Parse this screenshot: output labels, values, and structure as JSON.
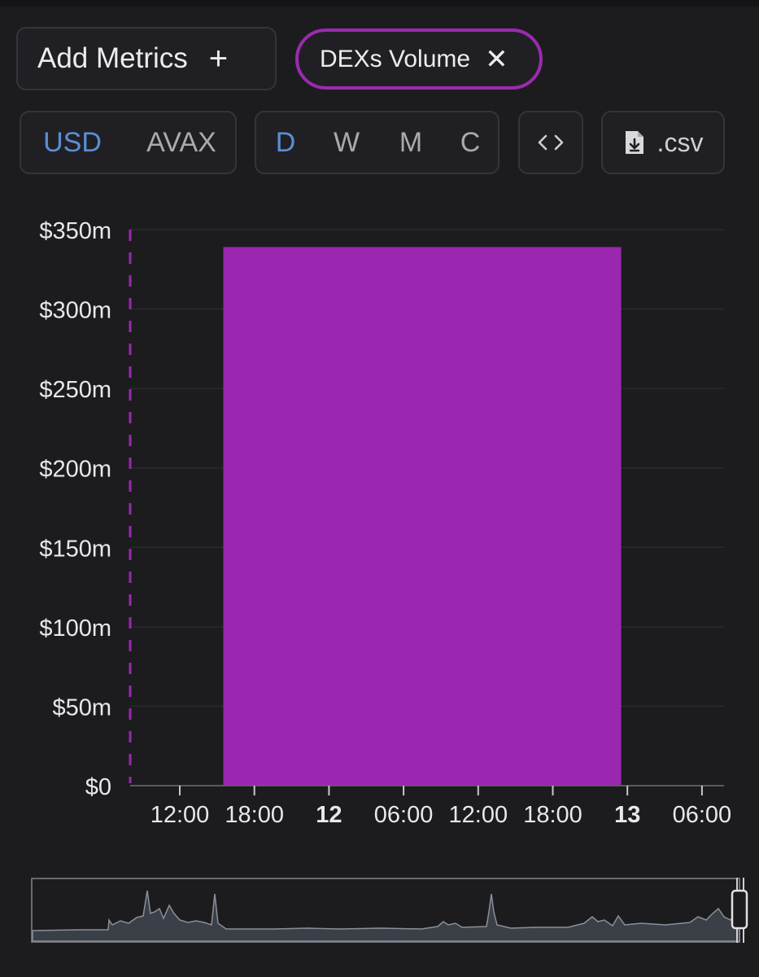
{
  "toolbar": {
    "add_metrics_label": "Add Metrics",
    "add_icon": "plus-icon",
    "metric_chip_label": "DEXs Volume",
    "close_icon": "close-icon",
    "currency_options": [
      "USD",
      "AVAX"
    ],
    "currency_selected": "USD",
    "period_options": [
      "D",
      "W",
      "M",
      "C"
    ],
    "period_selected": "D",
    "embed_icon": "code-icon",
    "csv_label": ".csv",
    "csv_icon": "file-download-icon"
  },
  "colors": {
    "background": "#1c1c1f",
    "accent_purple": "#9b27b0",
    "active_blue": "#5b8fd6",
    "text_muted": "#a9a9ae",
    "overview_fill": "#3b3f47"
  },
  "chart_data": {
    "type": "bar",
    "y_ticks": [
      "$0",
      "$50m",
      "$100m",
      "$150m",
      "$200m",
      "$250m",
      "$300m",
      "$350m"
    ],
    "ylim": [
      0,
      350
    ],
    "y_unit": "millions USD",
    "x_ticks": [
      "12:00",
      "18:00",
      "12",
      "06:00",
      "12:00",
      "18:00",
      "13",
      "06:00"
    ],
    "x_ticks_bold": [
      false,
      false,
      true,
      false,
      false,
      false,
      true,
      false
    ],
    "bars": [
      {
        "start": "11 15:30",
        "end": "12 23:30",
        "value": 339
      }
    ],
    "series": [
      {
        "values": [
          339
        ]
      }
    ],
    "grid": true,
    "highlight_line": "dashed vertical at left of plot"
  }
}
